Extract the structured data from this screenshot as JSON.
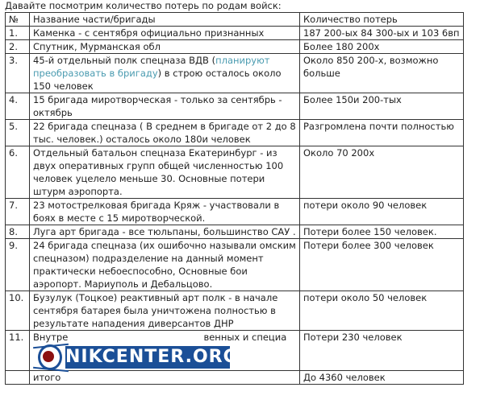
{
  "title": "Давайте посмотрим количество потерь по родам войск:",
  "table": {
    "headers": [
      "№",
      "Название части/бригады",
      "Количество потерь"
    ],
    "rows": [
      {
        "num": "1.",
        "name": "Каменка -  с сентября официально признанных",
        "losses": "187 200-ых  84 300-ых и 103 6вп"
      },
      {
        "num": "2.",
        "name": "Спутник, Мурманская обл",
        "losses": "Более 180 200х"
      },
      {
        "num": "3.",
        "name": "45-й отдельный полк спецназа ВДВ (",
        "name_link": "планируют преобразовать в бригаду",
        "name_tail": ")  в строю осталось около 150 человек",
        "losses": "Около 850 200-х, возможно больше"
      },
      {
        "num": "4.",
        "name": "15 бригада миротворческая - только за сентябрь - октябрь",
        "losses": "Более 150и 200-тых"
      },
      {
        "num": "5.",
        "name": "22 бригада спецназа ( В среднем в бригаде от 2 до 8 тыс. человек.) осталось около 180и человек",
        "losses": "Разгромлена почти полностью"
      },
      {
        "num": "6.",
        "name": " Отдельный батальон спецназа Екатеринбург - из двух оперативных групп общей численностью 100 человек уцелело меньше 30. Основные потери штурм аэропорта.",
        "losses": "Около 70 200х"
      },
      {
        "num": "7.",
        "name": "23 мотострелковая бригада Кряж - участвовали в боях в месте с 15 миротворческой.",
        "losses": "потери около 90 человек"
      },
      {
        "num": "8.",
        "name": "Луга арт бригада - все тюльпаны, большинство САУ .",
        "losses": "Потери более 150 человек."
      },
      {
        "num": "9.",
        "name": "24 бригада спецназа (их ошибочно называли омским спецназом) подразделение на данный момент практически небоеспособно, Основные бои аэропорт. Мариуполь и Дебальцово.",
        "losses": "Потери более 300 человек"
      },
      {
        "num": "10.",
        "name": "Бузулук (Тоцкое) реактивный арт полк - в начале сентября батарея была уничтожена полностью в результате нападения диверсантов ДНР",
        "losses": "потери около 50 человек"
      },
      {
        "num": "11.",
        "name": "Внутре                                              венных и специа",
        "losses": "Потери 230 человек"
      },
      {
        "num": "",
        "name": "итого",
        "losses": "До 4360 человек"
      }
    ]
  },
  "watermark": {
    "text": "NIKCENTER.ORG",
    "colors": {
      "blue": "#1b4f97",
      "red": "#8b1010"
    }
  }
}
